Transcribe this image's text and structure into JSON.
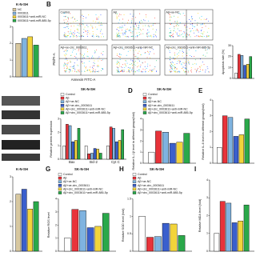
{
  "panel_labels": [
    "B",
    "D",
    "E",
    "G",
    "H",
    "I"
  ],
  "flow": {
    "plots": [
      "Control",
      "Aβ",
      "Aβ+oe-NC",
      "Aβ+oe-circ_0003611",
      "Aβ+circ_0003611+anti-miR-NC",
      "Aβ+circ_0003611+anti-miR-885-5p"
    ],
    "x_label": "Annexin FITC-A",
    "y_label": "PE/PI-A"
  },
  "chart_data": [
    {
      "type": "bar",
      "title": "K-N-SH",
      "legend": true,
      "categories": [
        null
      ],
      "ylim": [
        0,
        3
      ],
      "yticks": [
        0,
        1,
        2,
        3
      ],
      "series": [
        {
          "name": "NC",
          "color": "#d8c8a0",
          "values": [
            2.0
          ]
        },
        {
          "name": "0003611",
          "color": "#7fb3e0",
          "values": [
            2.3
          ]
        },
        {
          "name": "0003611+anti-miR-NC",
          "color": "#f2d43b",
          "values": [
            2.4
          ]
        },
        {
          "name": "0003611+anti-miR-885-5p",
          "color": "#2aa84a",
          "values": [
            1.9
          ]
        }
      ]
    },
    {
      "type": "bar",
      "y_label": "Apoptosis rate (%)",
      "categories": [
        null
      ],
      "ylim": [
        0,
        30
      ],
      "yticks": [
        0,
        10,
        20,
        30
      ],
      "series": [
        {
          "color": "#ffffff",
          "values": [
            5
          ]
        },
        {
          "color": "#e8333a",
          "values": [
            22
          ]
        },
        {
          "color": "#7fb3e0",
          "values": [
            21
          ]
        },
        {
          "color": "#3a5fcd",
          "values": [
            12
          ]
        },
        {
          "color": "#f2d43b",
          "values": [
            13
          ]
        },
        {
          "color": "#2aa84a",
          "values": [
            20
          ]
        }
      ]
    },
    {
      "type": "bar",
      "title": "SK-N-SH",
      "legend": true,
      "y_label": "Relative protein expression",
      "categories": [
        "Bax",
        "Bcl-2",
        "Cyt C"
      ],
      "ylim": [
        0,
        3
      ],
      "yticks": [
        0,
        1,
        2,
        3
      ],
      "series": [
        {
          "name": "Control",
          "color": "#ffffff",
          "values": [
            1,
            1,
            1
          ]
        },
        {
          "name": "Aβ",
          "color": "#e8333a",
          "values": [
            2.6,
            0.4,
            2.4
          ]
        },
        {
          "name": "Aβ+oe-NC",
          "color": "#7fb3e0",
          "values": [
            2.5,
            0.45,
            2.3
          ]
        },
        {
          "name": "Aβ+oe-circ_0003611",
          "color": "#3a5fcd",
          "values": [
            1.3,
            0.8,
            1.3
          ]
        },
        {
          "name": "Aβ+circ_0003611+anti-miR-NC",
          "color": "#f2d43b",
          "values": [
            1.4,
            0.75,
            1.4
          ]
        },
        {
          "name": "Aβ+circ_0003611+anti-miR-885-5p",
          "color": "#2aa84a",
          "values": [
            2.3,
            0.45,
            2.2
          ]
        }
      ]
    },
    {
      "type": "bar",
      "title": "SK-N-SH",
      "legend": true,
      "y_label": "Relative IL-1β level in different groups(fold)",
      "categories": [
        null
      ],
      "ylim": [
        0,
        4
      ],
      "yticks": [
        0,
        1,
        2,
        3,
        4
      ],
      "series": [
        {
          "name": "Control",
          "color": "#ffffff",
          "values": [
            1
          ]
        },
        {
          "name": "Aβ",
          "color": "#e8333a",
          "values": [
            2.9
          ]
        },
        {
          "name": "Aβ+oe-NC",
          "color": "#7fb3e0",
          "values": [
            2.8
          ]
        },
        {
          "name": "Aβ+oe-circ_0003611",
          "color": "#3a5fcd",
          "values": [
            1.8
          ]
        },
        {
          "name": "Aβ+circ_0003611+anti-miR-NC",
          "color": "#f2d43b",
          "values": [
            1.9
          ]
        },
        {
          "name": "Aβ+circ_0003611+anti-miR-885-5p",
          "color": "#2aa84a",
          "values": [
            2.7
          ]
        }
      ]
    },
    {
      "type": "bar",
      "y_label": "Relative IL-6 level in different groups(fold)",
      "categories": [
        null
      ],
      "ylim": [
        0,
        4
      ],
      "yticks": [
        0,
        1,
        2,
        3,
        4
      ],
      "series": [
        {
          "color": "#ffffff",
          "values": [
            1
          ]
        },
        {
          "color": "#e8333a",
          "values": [
            3.0
          ]
        },
        {
          "color": "#7fb3e0",
          "values": [
            2.9
          ]
        },
        {
          "color": "#3a5fcd",
          "values": [
            1.7
          ]
        },
        {
          "color": "#f2d43b",
          "values": [
            1.8
          ]
        },
        {
          "color": "#2aa84a",
          "values": [
            2.8
          ]
        }
      ]
    },
    {
      "type": "bar",
      "title": "K-N-SH",
      "categories": [
        null
      ],
      "ylim": [
        0,
        3
      ],
      "yticks": [
        0,
        1,
        2,
        3
      ],
      "series": [
        {
          "color": "#d8c8a0",
          "values": [
            2.3
          ]
        },
        {
          "color": "#3a5fcd",
          "values": [
            2.5
          ]
        },
        {
          "color": "#f2d43b",
          "values": [
            1.7
          ]
        },
        {
          "color": "#2aa84a",
          "values": [
            2.0
          ]
        }
      ]
    },
    {
      "type": "bar",
      "title": "SK-N-SH",
      "legend": true,
      "y_label": "Relative ROS level",
      "categories": [
        null
      ],
      "ylim": [
        0,
        4
      ],
      "yticks": [
        0,
        1,
        2,
        3,
        4
      ],
      "series": [
        {
          "name": "Control",
          "color": "#ffffff",
          "values": [
            1
          ]
        },
        {
          "name": "Aβ",
          "color": "#e8333a",
          "values": [
            3.2
          ]
        },
        {
          "name": "Aβ+oe-NC",
          "color": "#7fb3e0",
          "values": [
            3.1
          ]
        },
        {
          "name": "Aβ+oe-circ_0003611",
          "color": "#3a5fcd",
          "values": [
            1.8
          ]
        },
        {
          "name": "Aβ+circ_0003611+anti-miR-NC",
          "color": "#f2d43b",
          "values": [
            1.9
          ]
        },
        {
          "name": "Aβ+circ_0003611+anti-miR-885-5p",
          "color": "#2aa84a",
          "values": [
            2.9
          ]
        }
      ]
    },
    {
      "type": "bar",
      "title": "SK-N-SH",
      "legend": true,
      "y_label": "Relative SOD level (fold)",
      "categories": [
        null
      ],
      "ylim": [
        0,
        1.5
      ],
      "yticks": [
        0,
        0.5,
        1,
        1.5
      ],
      "series": [
        {
          "name": "Control",
          "color": "#ffffff",
          "values": [
            1
          ]
        },
        {
          "name": "Aβ",
          "color": "#e8333a",
          "values": [
            0.4
          ]
        },
        {
          "name": "Aβ+oe-NC",
          "color": "#7fb3e0",
          "values": [
            0.42
          ]
        },
        {
          "name": "Aβ+oe-circ_0003611",
          "color": "#3a5fcd",
          "values": [
            0.8
          ]
        },
        {
          "name": "Aβ+circ_0003611+anti-miR-NC",
          "color": "#f2d43b",
          "values": [
            0.78
          ]
        },
        {
          "name": "Aβ+circ_0003611+anti-miR-885-5p",
          "color": "#2aa84a",
          "values": [
            0.45
          ]
        }
      ]
    },
    {
      "type": "bar",
      "y_label": "Relative MDA level (fold)",
      "categories": [
        null
      ],
      "ylim": [
        0,
        4
      ],
      "yticks": [
        0,
        1,
        2,
        3,
        4
      ],
      "series": [
        {
          "color": "#ffffff",
          "values": [
            1
          ]
        },
        {
          "color": "#e8333a",
          "values": [
            2.8
          ]
        },
        {
          "color": "#7fb3e0",
          "values": [
            2.7
          ]
        },
        {
          "color": "#3a5fcd",
          "values": [
            1.6
          ]
        },
        {
          "color": "#f2d43b",
          "values": [
            1.7
          ]
        },
        {
          "color": "#2aa84a",
          "values": [
            2.6
          ]
        }
      ]
    }
  ]
}
